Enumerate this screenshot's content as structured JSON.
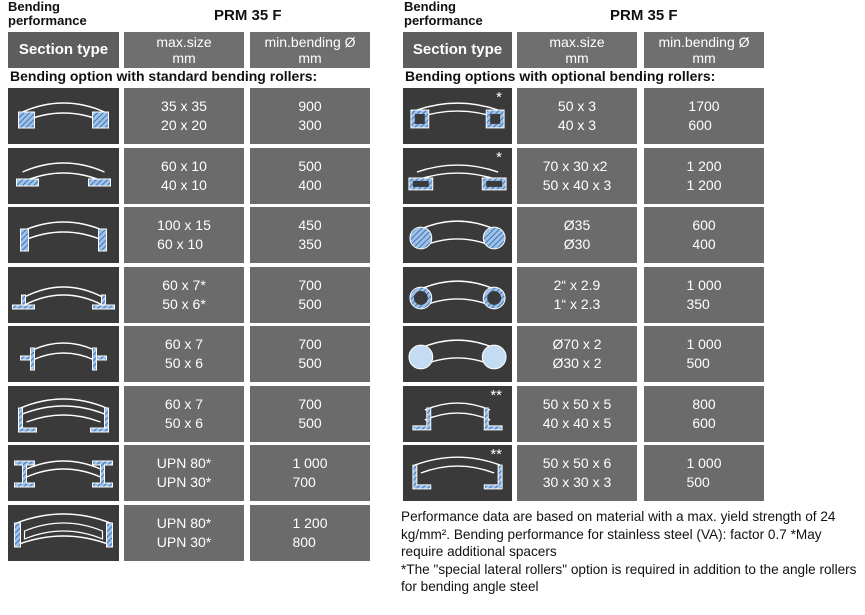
{
  "left": {
    "performance_label": "Bending\nperformance",
    "model": "PRM 35 F",
    "headers": {
      "section_type": "Section type",
      "max_size": "max.size\nmm",
      "min_bending": "min.bending Ø\nmm"
    },
    "subtitle": "Bending option with standard bending rollers:",
    "rows": [
      {
        "icon": "square-tube-icon",
        "star": "",
        "size": "35 x 35\n20 x 20",
        "bend": "900\n300"
      },
      {
        "icon": "flat-bar-icon",
        "star": "",
        "size": "60 x 10\n40 x 10",
        "bend": "500\n400"
      },
      {
        "icon": "flat-bar-edge-icon",
        "star": "",
        "size": "100 x 15\n60 x 10",
        "bend": "450\n350"
      },
      {
        "icon": "tee-outward-icon",
        "star": "",
        "size": "60 x 7*\n50 x 6*",
        "bend": "700\n500"
      },
      {
        "icon": "tee-inward-icon",
        "star": "",
        "size": "60 x 7\n50 x 6",
        "bend": "700\n500"
      },
      {
        "icon": "tee-flange-icon",
        "star": "",
        "size": "60 x 7\n50 x 6",
        "bend": "700\n500"
      },
      {
        "icon": "channel-outward-icon",
        "star": "",
        "size": "UPN 80*\nUPN 30*",
        "bend": "1 000\n700"
      },
      {
        "icon": "channel-inward-icon",
        "star": "",
        "size": "UPN 80*\nUPN 30*",
        "bend": "1 200\n800"
      }
    ]
  },
  "right": {
    "performance_label": "Bending\nperformance",
    "model": "PRM 35 F",
    "headers": {
      "section_type": "Section type",
      "max_size": "max.size\nmm",
      "min_bending": "min.bending Ø\nmm"
    },
    "subtitle": "Bending options with optional bending rollers:",
    "rows": [
      {
        "icon": "square-hollow-icon",
        "star": "*",
        "size": "50 x 3\n40 x 3",
        "bend": "1700\n600"
      },
      {
        "icon": "rect-hollow-icon",
        "star": "*",
        "size": "70 x 30 x2\n50 x 40 x 3",
        "bend": "1 200\n1 200"
      },
      {
        "icon": "round-bar-icon",
        "star": "",
        "size": "Ø35\nØ30",
        "bend": "600\n400"
      },
      {
        "icon": "pipe-icon",
        "star": "",
        "size": "2“ x 2.9\n1“ x 2.3",
        "bend": "1 000\n350"
      },
      {
        "icon": "tube-icon",
        "star": "",
        "size": "Ø70 x 2\nØ30 x 2",
        "bend": "1 000\n500"
      },
      {
        "icon": "angle-outward-icon",
        "star": "**",
        "size": "50 x 50 x 5\n40 x 40 x 5",
        "bend": "800\n600"
      },
      {
        "icon": "angle-inward-icon",
        "star": "**",
        "size": "50 x 50 x 6\n30 x 30 x 3",
        "bend": "1 000\n500"
      }
    ]
  },
  "notes": "Performance data are based on material with a max. yield strength of 24 kg/mm². Bending performance for stainless steel (VA): factor 0.7  *May require additional spacers\n*The \"special lateral rollers\" option is required in addition to the angle rollers for bending angle steel",
  "colors": {
    "header_bg": "#6f6f6f",
    "cell_bg": "#6b6b6b",
    "icon_bg": "#3a3a3a",
    "section_blue": "#9fc3e8"
  }
}
